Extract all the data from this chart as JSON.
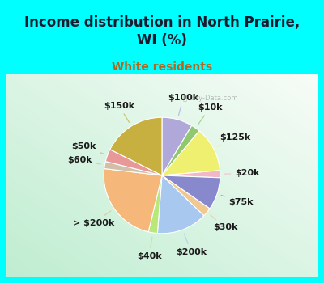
{
  "title": "Income distribution in North Prairie,\nWI (%)",
  "subtitle": "White residents",
  "bg_cyan": "#00FFFF",
  "slices": [
    {
      "label": "$100k",
      "value": 8.5,
      "color": "#b0a8d8"
    },
    {
      "label": "$10k",
      "value": 2.5,
      "color": "#90c870"
    },
    {
      "label": "$125k",
      "value": 12.5,
      "color": "#f0f070"
    },
    {
      "label": "$20k",
      "value": 2.0,
      "color": "#f0b8c8"
    },
    {
      "label": "$75k",
      "value": 9.0,
      "color": "#8888cc"
    },
    {
      "label": "$30k",
      "value": 2.5,
      "color": "#f0c890"
    },
    {
      "label": "$200k",
      "value": 14.0,
      "color": "#a8c8f0"
    },
    {
      "label": "$40k",
      "value": 2.5,
      "color": "#b8e878"
    },
    {
      "label": "> $200k",
      "value": 23.0,
      "color": "#f5b87a"
    },
    {
      "label": "$60k",
      "value": 2.0,
      "color": "#d0c0a8"
    },
    {
      "label": "$50k",
      "value": 3.5,
      "color": "#e89898"
    },
    {
      "label": "$150k",
      "value": 17.5,
      "color": "#c8b040"
    }
  ],
  "label_fontsize": 8,
  "title_fontsize": 12,
  "subtitle_fontsize": 10,
  "title_color": "#1a1a2e",
  "subtitle_color": "#b06820"
}
